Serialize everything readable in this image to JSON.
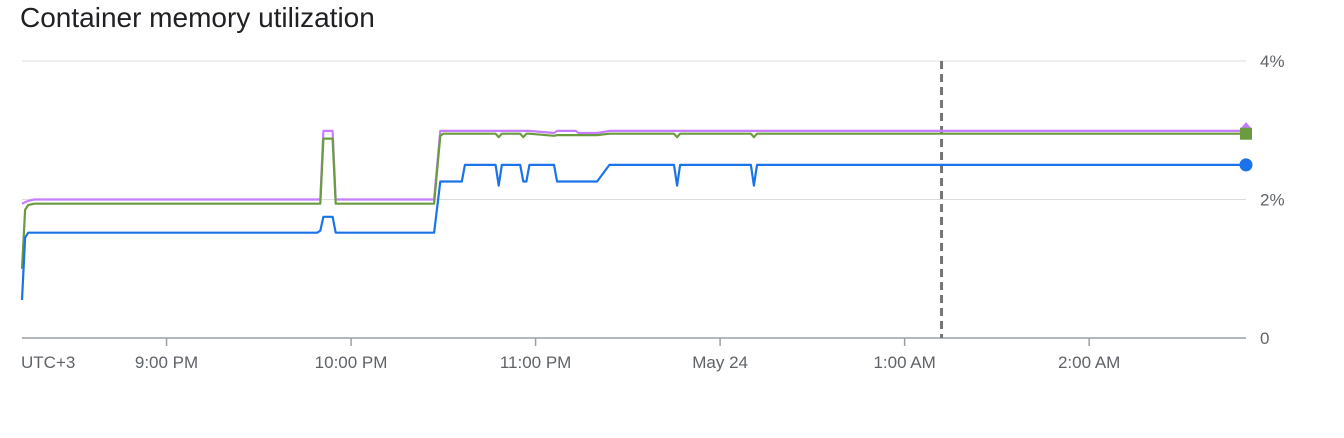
{
  "title": "Container memory utilization",
  "chart_data": {
    "type": "line",
    "title": "Container memory utilization",
    "xlabel": "",
    "ylabel": "",
    "timezone_label": "UTC+3",
    "x_tick_labels": [
      "9:00 PM",
      "10:00 PM",
      "11:00 PM",
      "May 24",
      "1:00 AM",
      "2:00 AM"
    ],
    "x_tick_minutes": [
      60,
      120,
      180,
      240,
      300,
      360
    ],
    "xlim": [
      13,
      411
    ],
    "y_tick_labels": [
      "0",
      "2%",
      "4%"
    ],
    "y_tick_values": [
      0,
      2,
      4
    ],
    "ylim": [
      0,
      4
    ],
    "grid": true,
    "cursor_minutes": 312,
    "series": [
      {
        "color": "#c77dff",
        "x": [
          13,
          14,
          15,
          17,
          18,
          20,
          90,
          108,
          109,
          110,
          111,
          112,
          113,
          114,
          115,
          116,
          120,
          136,
          147,
          149,
          150,
          151,
          152,
          153,
          156,
          157,
          167,
          168,
          169,
          175,
          176,
          177,
          178,
          186,
          187,
          193,
          194,
          196,
          197,
          200,
          204,
          250,
          255,
          270,
          400,
          411
        ],
        "y": [
          1.94,
          1.96,
          1.98,
          2.0,
          2.0,
          2.0,
          2.0,
          2.0,
          2.0,
          2.0,
          2.99,
          2.99,
          2.99,
          2.99,
          2.0,
          2.0,
          2.0,
          2.0,
          2.0,
          2.99,
          2.99,
          2.99,
          2.99,
          2.99,
          2.99,
          2.99,
          2.99,
          2.99,
          2.99,
          2.99,
          2.99,
          2.99,
          2.99,
          2.96,
          2.99,
          2.99,
          2.96,
          2.96,
          2.96,
          2.96,
          2.99,
          2.99,
          2.99,
          2.99,
          2.99,
          2.99
        ]
      },
      {
        "color": "#6a9c3f",
        "x": [
          13,
          14,
          15,
          17,
          18,
          20,
          90,
          108,
          109,
          110,
          111,
          112,
          113,
          114,
          115,
          116,
          120,
          136,
          147,
          149,
          150,
          151,
          152,
          153,
          156,
          157,
          167,
          168,
          169,
          175,
          176,
          177,
          178,
          186,
          187,
          193,
          194,
          196,
          197,
          200,
          204,
          225,
          226,
          227,
          250,
          251,
          252,
          270,
          400,
          411
        ],
        "y": [
          1.0,
          1.85,
          1.92,
          1.94,
          1.94,
          1.94,
          1.94,
          1.94,
          1.94,
          1.94,
          2.88,
          2.88,
          2.88,
          2.88,
          1.94,
          1.94,
          1.94,
          1.94,
          1.94,
          2.92,
          2.95,
          2.95,
          2.95,
          2.95,
          2.95,
          2.95,
          2.95,
          2.9,
          2.95,
          2.95,
          2.9,
          2.95,
          2.95,
          2.92,
          2.93,
          2.93,
          2.93,
          2.93,
          2.93,
          2.93,
          2.95,
          2.95,
          2.9,
          2.95,
          2.95,
          2.9,
          2.95,
          2.95,
          2.95,
          2.95
        ]
      },
      {
        "color": "#1a73e8",
        "x": [
          13,
          14,
          15,
          17,
          18,
          20,
          90,
          108,
          109,
          110,
          111,
          112,
          113,
          114,
          115,
          116,
          120,
          136,
          147,
          149,
          150,
          151,
          152,
          153,
          156,
          157,
          167,
          168,
          169,
          175,
          176,
          177,
          178,
          186,
          187,
          193,
          194,
          196,
          197,
          200,
          204,
          225,
          226,
          227,
          250,
          251,
          252,
          270,
          400,
          411
        ],
        "y": [
          0.55,
          1.45,
          1.52,
          1.52,
          1.52,
          1.52,
          1.52,
          1.52,
          1.52,
          1.55,
          1.75,
          1.75,
          1.75,
          1.75,
          1.52,
          1.52,
          1.52,
          1.52,
          1.52,
          2.26,
          2.26,
          2.26,
          2.26,
          2.26,
          2.26,
          2.5,
          2.5,
          2.2,
          2.5,
          2.5,
          2.26,
          2.26,
          2.5,
          2.5,
          2.26,
          2.26,
          2.26,
          2.26,
          2.26,
          2.26,
          2.5,
          2.5,
          2.2,
          2.5,
          2.5,
          2.2,
          2.5,
          2.5,
          2.5,
          2.5
        ]
      }
    ]
  }
}
